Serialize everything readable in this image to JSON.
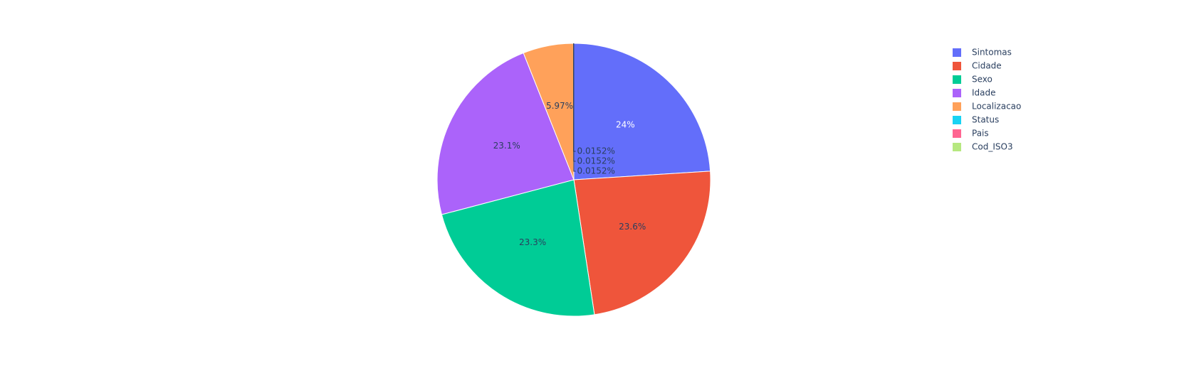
{
  "chart_data": {
    "type": "pie",
    "title": "",
    "labels": [
      "Sintomas",
      "Cidade",
      "Sexo",
      "Idade",
      "Localizacao",
      "Status",
      "Pais",
      "Cod_ISO3"
    ],
    "values": [
      24.0,
      23.6,
      23.3,
      23.1,
      5.97,
      0.0152,
      0.0152,
      0.0152
    ],
    "text_labels": [
      "24%",
      "23.6%",
      "23.3%",
      "23.1%",
      "5.97%",
      "0.0152%",
      "0.0152%",
      "0.0152%"
    ],
    "colors": [
      "#636efa",
      "#ef553b",
      "#00cc96",
      "#ab63fa",
      "#ffa15a",
      "#19d3f3",
      "#ff6692",
      "#b6e880"
    ],
    "label_text_colors": [
      "#ffffff",
      "#2a3f5f",
      "#2a3f5f",
      "#2a3f5f",
      "#2a3f5f",
      "#2a3f5f",
      "#2a3f5f",
      "#2a3f5f"
    ],
    "direction": "clockwise",
    "start": "12 o'clock",
    "legend_position": "top-right"
  }
}
